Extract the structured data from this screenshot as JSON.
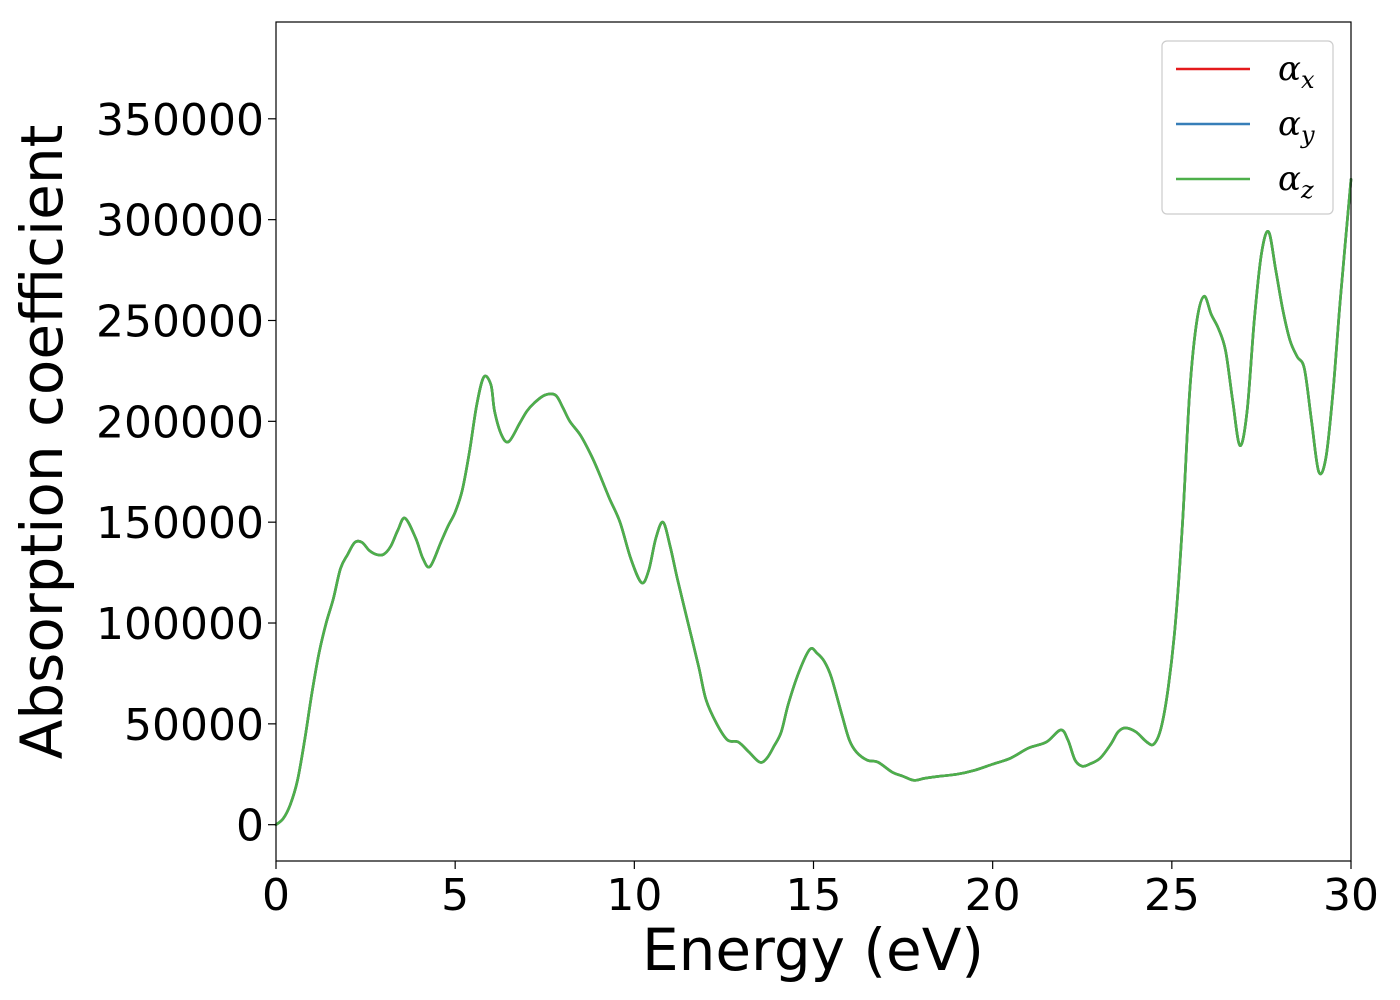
{
  "chart_data": {
    "type": "line",
    "title": "",
    "xlabel": "Energy (eV)",
    "ylabel": "Absorption coefficient",
    "xlim": [
      0,
      30
    ],
    "ylim": [
      -18000,
      398000
    ],
    "xticks": [
      0,
      5,
      10,
      15,
      20,
      25,
      30
    ],
    "xtick_labels": [
      "0",
      "5",
      "10",
      "15",
      "20",
      "25",
      "30"
    ],
    "yticks": [
      0,
      50000,
      100000,
      150000,
      200000,
      250000,
      300000,
      350000
    ],
    "ytick_labels": [
      "0",
      "50000",
      "100000",
      "150000",
      "200000",
      "250000",
      "300000",
      "350000"
    ],
    "grid": false,
    "legend_position": "top-right",
    "x": [
      0,
      0.2,
      0.4,
      0.6,
      0.8,
      1.0,
      1.2,
      1.4,
      1.6,
      1.8,
      2.0,
      2.2,
      2.4,
      2.6,
      2.8,
      3.0,
      3.2,
      3.4,
      3.6,
      3.9,
      4.1,
      4.3,
      4.6,
      4.8,
      5.0,
      5.2,
      5.4,
      5.6,
      5.8,
      6.0,
      6.1,
      6.3,
      6.5,
      6.8,
      7.0,
      7.2,
      7.5,
      7.8,
      8.0,
      8.2,
      8.5,
      8.8,
      9.0,
      9.3,
      9.6,
      9.9,
      10.2,
      10.4,
      10.6,
      10.8,
      11.0,
      11.2,
      11.5,
      11.8,
      12.0,
      12.3,
      12.6,
      12.9,
      13.2,
      13.5,
      13.7,
      13.9,
      14.1,
      14.3,
      14.6,
      14.9,
      15.1,
      15.3,
      15.5,
      15.8,
      16.0,
      16.2,
      16.5,
      16.8,
      17.2,
      17.5,
      17.8,
      18.1,
      18.5,
      19.0,
      19.5,
      20.0,
      20.5,
      21.0,
      21.5,
      21.9,
      22.1,
      22.3,
      22.5,
      22.7,
      23.0,
      23.3,
      23.5,
      23.7,
      24.0,
      24.3,
      24.5,
      24.7,
      24.9,
      25.1,
      25.3,
      25.5,
      25.7,
      25.9,
      26.1,
      26.3,
      26.5,
      26.7,
      26.9,
      27.1,
      27.3,
      27.5,
      27.7,
      27.9,
      28.1,
      28.3,
      28.5,
      28.7,
      28.9,
      29.1,
      29.3,
      29.5,
      29.7,
      30.0
    ],
    "series": [
      {
        "name": "α_x",
        "color": "#e41a1c",
        "values": [
          0,
          3000,
          10000,
          22000,
          42000,
          65000,
          85000,
          100000,
          112000,
          127000,
          134000,
          140000,
          140000,
          136000,
          134000,
          134000,
          138000,
          146000,
          152000,
          142000,
          132000,
          128000,
          140000,
          148000,
          155000,
          166000,
          185000,
          208000,
          222000,
          218000,
          205000,
          193000,
          190000,
          199000,
          205000,
          209000,
          213000,
          213000,
          207000,
          200000,
          193000,
          183000,
          175000,
          162000,
          150000,
          132000,
          120000,
          126000,
          142000,
          150000,
          138000,
          122000,
          100000,
          78000,
          62000,
          50000,
          42000,
          41000,
          36000,
          31000,
          33000,
          39000,
          46000,
          60000,
          76000,
          87000,
          85000,
          81000,
          73000,
          54000,
          42000,
          36000,
          32000,
          31000,
          26000,
          24000,
          22000,
          23000,
          24000,
          25000,
          27000,
          30000,
          33000,
          38000,
          41000,
          47000,
          42000,
          32000,
          29000,
          30000,
          33000,
          40000,
          46000,
          48000,
          46000,
          41000,
          40000,
          48000,
          68000,
          100000,
          150000,
          215000,
          250000,
          262000,
          253000,
          246000,
          235000,
          210000,
          188000,
          205000,
          250000,
          283000,
          294000,
          275000,
          255000,
          240000,
          232000,
          226000,
          200000,
          175000,
          182000,
          215000,
          260000,
          320000
        ]
      },
      {
        "name": "α_y",
        "color": "#377eb8",
        "values": [
          0,
          3000,
          10000,
          22000,
          42000,
          65000,
          85000,
          100000,
          112000,
          127000,
          134000,
          140000,
          140000,
          136000,
          134000,
          134000,
          138000,
          146000,
          152000,
          142000,
          132000,
          128000,
          140000,
          148000,
          155000,
          166000,
          185000,
          208000,
          222000,
          218000,
          205000,
          193000,
          190000,
          199000,
          205000,
          209000,
          213000,
          213000,
          207000,
          200000,
          193000,
          183000,
          175000,
          162000,
          150000,
          132000,
          120000,
          126000,
          142000,
          150000,
          138000,
          122000,
          100000,
          78000,
          62000,
          50000,
          42000,
          41000,
          36000,
          31000,
          33000,
          39000,
          46000,
          60000,
          76000,
          87000,
          85000,
          81000,
          73000,
          54000,
          42000,
          36000,
          32000,
          31000,
          26000,
          24000,
          22000,
          23000,
          24000,
          25000,
          27000,
          30000,
          33000,
          38000,
          41000,
          47000,
          42000,
          32000,
          29000,
          30000,
          33000,
          40000,
          46000,
          48000,
          46000,
          41000,
          40000,
          48000,
          68000,
          100000,
          150000,
          215000,
          250000,
          262000,
          253000,
          246000,
          235000,
          210000,
          188000,
          205000,
          250000,
          283000,
          294000,
          275000,
          255000,
          240000,
          232000,
          226000,
          200000,
          175000,
          182000,
          215000,
          260000,
          320000
        ]
      },
      {
        "name": "α_z",
        "color": "#4daf4a",
        "values": [
          0,
          3000,
          10000,
          22000,
          42000,
          65000,
          85000,
          100000,
          112000,
          127000,
          134000,
          140000,
          140000,
          136000,
          134000,
          134000,
          138000,
          146000,
          152000,
          142000,
          132000,
          128000,
          140000,
          148000,
          155000,
          166000,
          185000,
          208000,
          222000,
          218000,
          205000,
          193000,
          190000,
          199000,
          205000,
          209000,
          213000,
          213000,
          207000,
          200000,
          193000,
          183000,
          175000,
          162000,
          150000,
          132000,
          120000,
          126000,
          142000,
          150000,
          138000,
          122000,
          100000,
          78000,
          62000,
          50000,
          42000,
          41000,
          36000,
          31000,
          33000,
          39000,
          46000,
          60000,
          76000,
          87000,
          85000,
          81000,
          73000,
          54000,
          42000,
          36000,
          32000,
          31000,
          26000,
          24000,
          22000,
          23000,
          24000,
          25000,
          27000,
          30000,
          33000,
          38000,
          41000,
          47000,
          42000,
          32000,
          29000,
          30000,
          33000,
          40000,
          46000,
          48000,
          46000,
          41000,
          40000,
          48000,
          68000,
          100000,
          150000,
          215000,
          250000,
          262000,
          253000,
          246000,
          235000,
          210000,
          188000,
          205000,
          250000,
          283000,
          294000,
          275000,
          255000,
          240000,
          232000,
          226000,
          200000,
          175000,
          182000,
          215000,
          260000,
          320000
        ]
      }
    ]
  },
  "legend": [
    {
      "symbol": "α",
      "sub": "x"
    },
    {
      "symbol": "α",
      "sub": "y"
    },
    {
      "symbol": "α",
      "sub": "z"
    }
  ]
}
